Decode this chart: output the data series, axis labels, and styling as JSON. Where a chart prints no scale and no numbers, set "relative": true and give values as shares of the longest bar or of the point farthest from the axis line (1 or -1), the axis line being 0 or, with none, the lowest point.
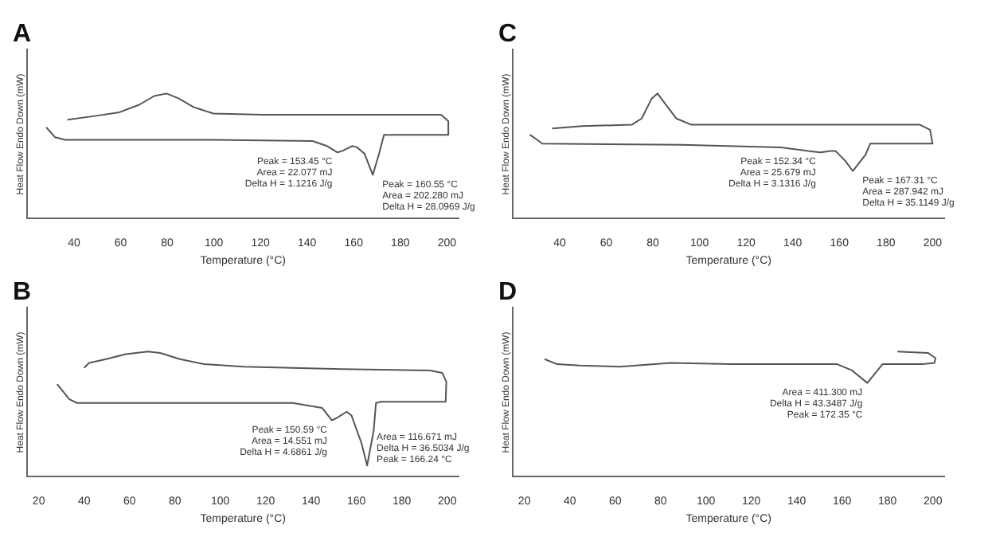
{
  "chart_data": [
    {
      "type": "line",
      "title": "A",
      "xlabel": "Temperature (°C)",
      "ylabel": "Heat Flow Endo Down (mW)",
      "relative": true,
      "xlim": [
        20,
        205
      ],
      "xticks": [
        40,
        60,
        80,
        100,
        120,
        140,
        160,
        180,
        200
      ],
      "marker": "none",
      "grid": false,
      "legend": false,
      "series": [
        {
          "color": "#555555",
          "x": [
            37.2,
            48.9,
            59.5,
            68.0,
            74.4,
            79.7,
            85.0,
            91.4,
            99.8,
            121.1,
            197.5,
            200.6,
            200.6,
            173.0,
            170.9,
            168.2,
            164.6,
            161.4,
            159.3,
            155.0,
            152.9,
            148.6,
            142.3,
            99.8,
            36.2,
            31.9,
            28.1
          ],
          "values": [
            0.79,
            0.82,
            0.85,
            0.91,
            0.98,
            1.0,
            0.96,
            0.89,
            0.84,
            0.83,
            0.83,
            0.78,
            0.67,
            0.67,
            0.52,
            0.35,
            0.52,
            0.57,
            0.58,
            0.54,
            0.53,
            0.58,
            0.62,
            0.63,
            0.63,
            0.65,
            0.73
          ]
        }
      ],
      "annotations": [
        {
          "text": "Peak = 153.45 °C\nArea = 22.077 mJ\nDelta H = 1.1216 J/g",
          "x": 152.9,
          "y": 0.53
        },
        {
          "text": "Peak = 160.55 °C\nArea = 202.280 mJ\nDelta H = 28.0969 J/g",
          "x": 168.2,
          "y": 0.35
        }
      ]
    },
    {
      "type": "line",
      "title": "C",
      "xlabel": "Temperature (°C)",
      "ylabel": "Heat Flow Endo Down (mW)",
      "relative": true,
      "xlim": [
        20,
        205
      ],
      "xticks": [
        40,
        60,
        80,
        100,
        120,
        140,
        160,
        180,
        200
      ],
      "marker": "none",
      "grid": false,
      "legend": false,
      "series": [
        {
          "color": "#555555",
          "x": [
            36.8,
            49.6,
            70.9,
            75.2,
            79.5,
            82.0,
            84.8,
            90.1,
            96.5,
            194.6,
            198.9,
            200,
            173.3,
            171.2,
            165.8,
            162.6,
            158.4,
            156.3,
            152.0,
            146.7,
            134.9,
            92.3,
            32.5,
            30.4,
            27.2
          ],
          "values": [
            0.72,
            0.74,
            0.75,
            0.8,
            0.96,
            1.0,
            0.93,
            0.8,
            0.75,
            0.75,
            0.71,
            0.6,
            0.6,
            0.51,
            0.38,
            0.46,
            0.54,
            0.54,
            0.53,
            0.54,
            0.57,
            0.59,
            0.6,
            0.63,
            0.67
          ]
        }
      ],
      "annotations": [
        {
          "text": "Peak = 152.34 °C\nArea = 25.679 mJ\nDelta H = 3.1316 J/g",
          "x": 152.0,
          "y": 0.53
        },
        {
          "text": "Peak = 167.31 °C\nArea = 287.942 mJ\nDelta H = 35.1149 J/g",
          "x": 165.8,
          "y": 0.38
        }
      ]
    },
    {
      "type": "line",
      "title": "B",
      "xlabel": "Temperature (°C)",
      "ylabel": "Heat Flow Endo Down (mW)",
      "relative": true,
      "xlim": [
        15,
        205
      ],
      "xticks": [
        20,
        40,
        60,
        80,
        100,
        120,
        140,
        160,
        180,
        200
      ],
      "marker": "none",
      "grid": false,
      "legend": false,
      "series": [
        {
          "color": "#555555",
          "x": [
            40,
            42.2,
            49.7,
            58.4,
            68.1,
            73.5,
            82.2,
            93.0,
            110.3,
            131.9,
            153.5,
            192.4,
            197.8,
            199.6,
            199.3,
            170.8,
            168.6,
            167.6,
            164.7,
            162.2,
            157.8,
            155.7,
            151.3,
            149.2,
            144.9,
            131.9,
            88.6,
            36.8,
            33.5,
            28.1
          ],
          "values": [
            0.87,
            0.91,
            0.94,
            0.98,
            1.0,
            0.99,
            0.94,
            0.9,
            0.88,
            0.87,
            0.86,
            0.85,
            0.83,
            0.76,
            0.6,
            0.6,
            0.59,
            0.37,
            0.09,
            0.27,
            0.49,
            0.52,
            0.47,
            0.45,
            0.55,
            0.59,
            0.59,
            0.59,
            0.62,
            0.74
          ]
        }
      ],
      "annotations": [
        {
          "text": "Peak = 150.59 °C\nArea = 14.551 mJ\nDelta H = 4.6861 J/g",
          "x": 149.2,
          "y": 0.45
        },
        {
          "text": "Area = 116.671 mJ\nDelta H = 36.5034 J/g\nPeak = 166.24 °C",
          "x": 164.7,
          "y": 0.09
        }
      ]
    },
    {
      "type": "line",
      "title": "D",
      "xlabel": "Temperature (°C)",
      "ylabel": "Heat Flow Endo Down (mW)",
      "relative": true,
      "xlim": [
        15,
        205
      ],
      "xticks": [
        20,
        40,
        60,
        80,
        100,
        120,
        140,
        160,
        180,
        200
      ],
      "marker": "none",
      "grid": false,
      "legend": false,
      "series": [
        {
          "color": "#555555",
          "x": [
            28.9,
            34.4,
            44.4,
            62.2,
            84.4,
            111.1,
            157.8,
            164.4,
            171.1,
            175.6,
            177.8,
            195.6,
            200.7,
            201.1,
            197.8,
            184.4
          ],
          "values": [
            0.94,
            0.9,
            0.89,
            0.88,
            0.91,
            0.9,
            0.9,
            0.85,
            0.75,
            0.85,
            0.9,
            0.9,
            0.91,
            0.95,
            0.99,
            1.0
          ]
        }
      ],
      "annotations": [
        {
          "text": "Area = 411.300 mJ\nDelta H = 43.3487 J/g\nPeak = 172.35 °C",
          "x": 171.1,
          "y": 0.75
        }
      ]
    }
  ]
}
